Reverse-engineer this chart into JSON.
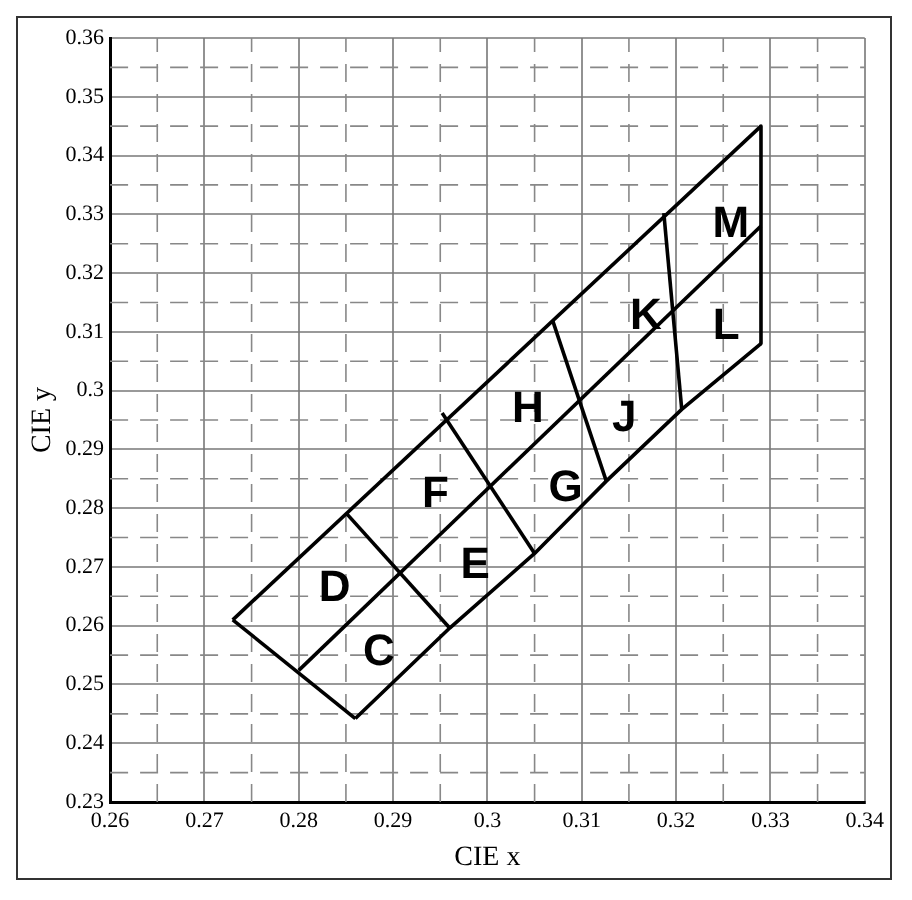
{
  "chart_data": {
    "type": "line",
    "xlabel": "CIE x",
    "ylabel": "CIE y",
    "xlim": [
      0.26,
      0.34
    ],
    "ylim": [
      0.23,
      0.36
    ],
    "xticks": [
      0.26,
      {
        "value": 0.265,
        "label": null
      },
      0.27,
      {
        "value": 0.275,
        "label": null
      },
      0.28,
      {
        "value": 0.285,
        "label": null
      },
      0.29,
      {
        "value": 0.295,
        "label": null
      },
      0.3,
      {
        "value": 0.305,
        "label": null
      },
      0.31,
      {
        "value": 0.315,
        "label": null
      },
      0.32,
      {
        "value": 0.325,
        "label": null
      },
      0.33,
      {
        "value": 0.335,
        "label": null
      },
      0.34
    ],
    "yticks": [
      0.23,
      {
        "value": 0.235,
        "label": null
      },
      0.24,
      {
        "value": 0.245,
        "label": null
      },
      0.25,
      {
        "value": 0.255,
        "label": null
      },
      0.26,
      {
        "value": 0.265,
        "label": null
      },
      0.27,
      {
        "value": 0.275,
        "label": null
      },
      0.28,
      {
        "value": 0.285,
        "label": null
      },
      0.29,
      {
        "value": 0.295,
        "label": null
      },
      0.3,
      {
        "value": 0.305,
        "label": null
      },
      0.31,
      {
        "value": 0.315,
        "label": null
      },
      0.32,
      {
        "value": 0.325,
        "label": null
      },
      0.33,
      {
        "value": 0.335,
        "label": null
      },
      0.34,
      {
        "value": 0.345,
        "label": null
      },
      0.35,
      {
        "value": 0.355,
        "label": null
      },
      0.36
    ],
    "grid": true,
    "legend": false,
    "marker": "none",
    "line_style": "solid",
    "series": [
      {
        "color": "#000000",
        "x": [
          0.273,
          0.329
        ],
        "values": [
          0.261,
          0.345
        ]
      },
      {
        "color": "#000000",
        "x": [
          0.329,
          0.329
        ],
        "values": [
          0.345,
          0.308
        ]
      },
      {
        "color": "#000000",
        "x": [
          0.286,
          0.296,
          0.305,
          0.3126,
          0.3206,
          0.329
        ],
        "values": [
          0.2442,
          0.2596,
          0.2723,
          0.2846,
          0.2968,
          0.308
        ]
      },
      {
        "color": "#000000",
        "x": [
          0.273,
          0.286
        ],
        "values": [
          0.261,
          0.2442
        ]
      },
      {
        "color": "#000000",
        "x": [
          0.28,
          0.329
        ],
        "values": [
          0.2524,
          0.328
        ]
      },
      {
        "color": "#000000",
        "x": [
          0.285,
          0.296
        ],
        "values": [
          0.2792,
          0.2596
        ]
      },
      {
        "color": "#000000",
        "x": [
          0.2952,
          0.305
        ],
        "values": [
          0.2962,
          0.2723
        ]
      },
      {
        "color": "#000000",
        "x": [
          0.3069,
          0.3126
        ],
        "values": [
          0.312,
          0.2846
        ]
      },
      {
        "color": "#000000",
        "x": [
          0.3187,
          0.3206
        ],
        "values": [
          0.3302,
          0.2968
        ]
      }
    ],
    "annotations": [
      "D",
      "C",
      "E",
      "F",
      "G",
      "H",
      "J",
      "K",
      "L",
      "M"
    ]
  }
}
